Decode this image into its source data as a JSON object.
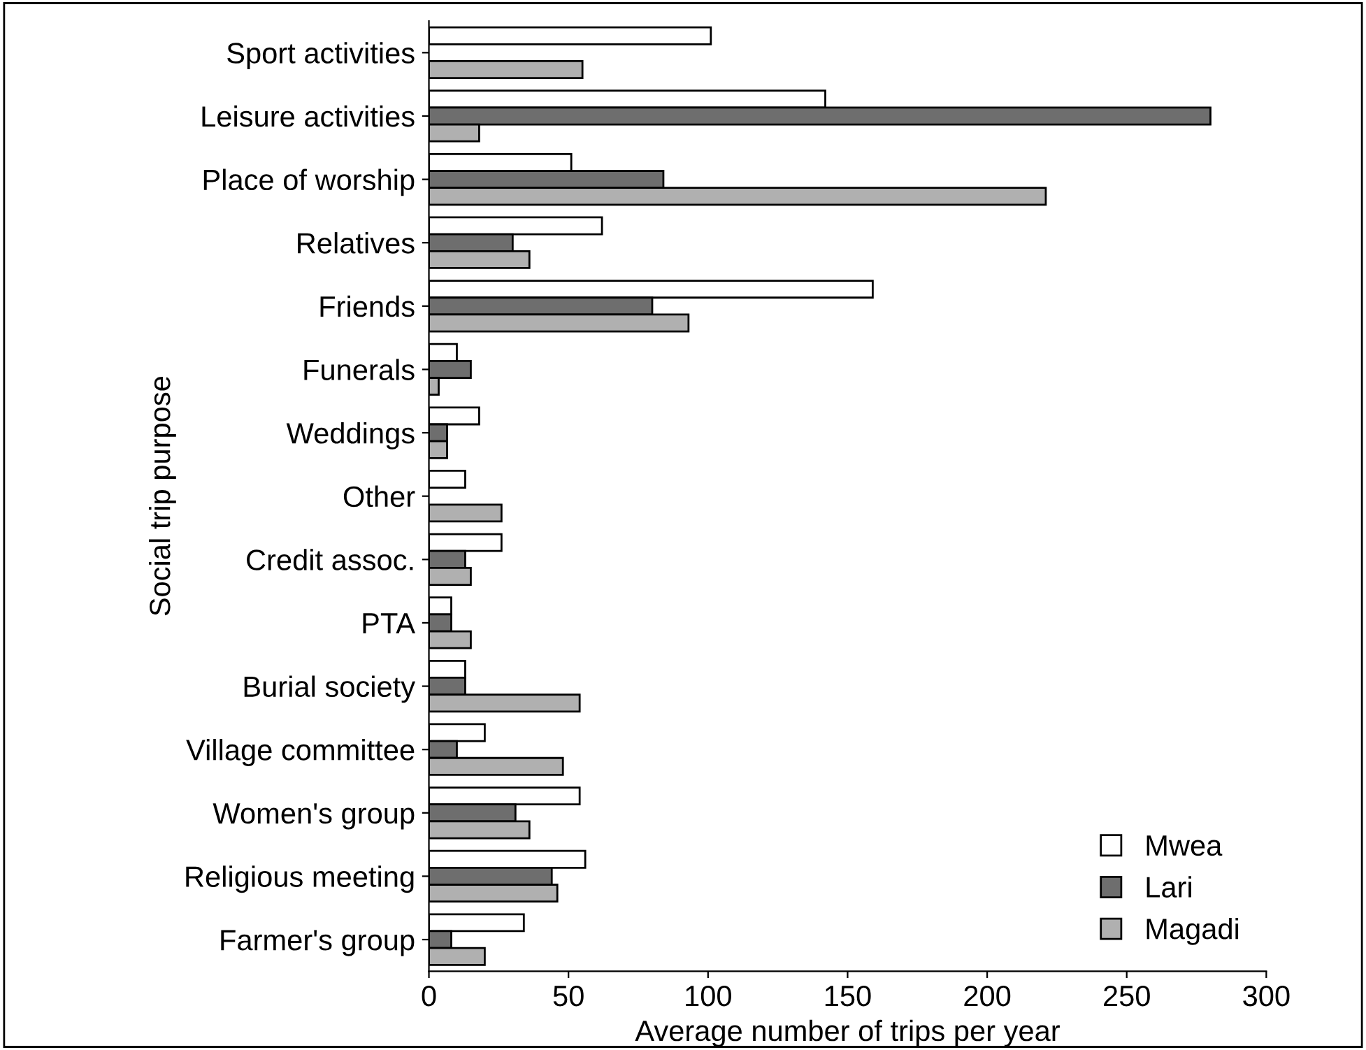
{
  "chart_data": {
    "type": "bar",
    "orientation": "horizontal",
    "xlabel": "Average number of trips per year",
    "ylabel": "Social trip purpose",
    "categories": [
      "Sport activities",
      "Leisure activities",
      "Place of worship",
      "Relatives",
      "Friends",
      "Funerals",
      "Weddings",
      "Other",
      "Credit assoc.",
      "PTA",
      "Burial society",
      "Village committee",
      "Women's group",
      "Religious meeting",
      "Farmer's group"
    ],
    "series": [
      {
        "name": "Mwea",
        "color": "#ffffff",
        "values": [
          101,
          142,
          51,
          62,
          159,
          10,
          18,
          13,
          26,
          8,
          13,
          20,
          54,
          56,
          34
        ]
      },
      {
        "name": "Lari",
        "color": "#6e6e6e",
        "values": [
          null,
          280,
          84,
          30,
          80,
          15,
          6.5,
          null,
          13,
          8,
          13,
          10,
          31,
          44,
          8
        ]
      },
      {
        "name": "Magadi",
        "color": "#b0b0b0",
        "values": [
          55,
          18,
          221,
          36,
          93,
          3.5,
          6.5,
          26,
          15,
          15,
          54,
          48,
          36,
          46,
          20
        ]
      }
    ],
    "xlim": [
      0,
      300
    ],
    "xticks": [
      0,
      50,
      100,
      150,
      200,
      250,
      300
    ],
    "grid": false,
    "legend": "bottom right"
  }
}
